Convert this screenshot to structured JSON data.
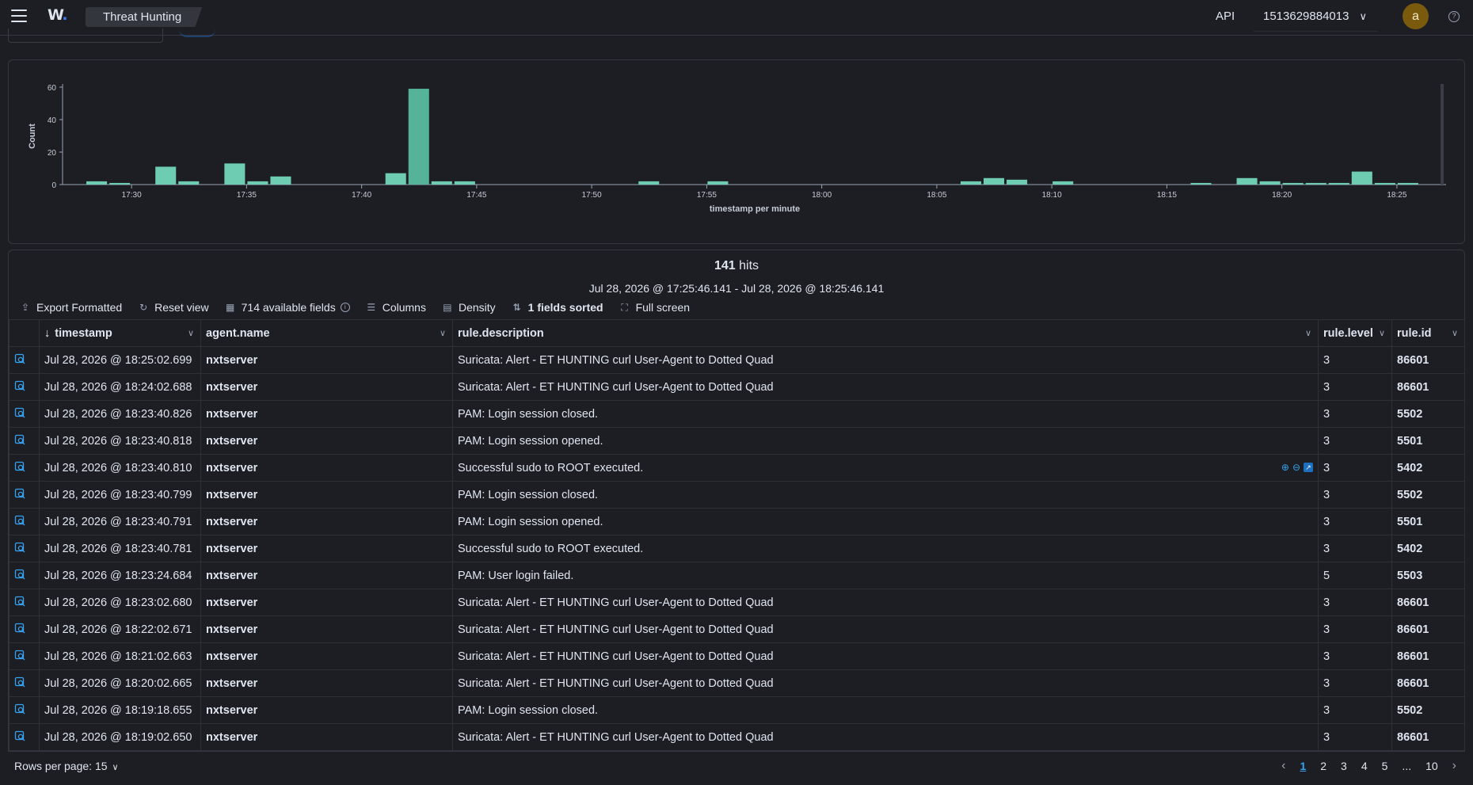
{
  "header": {
    "logo_text": "W",
    "breadcrumb": "Threat Hunting",
    "api_label": "API",
    "selected_id": "1513629884013",
    "avatar_initial": "a"
  },
  "chart_data": {
    "type": "bar",
    "ylabel": "Count",
    "xlabel": "timestamp per minute",
    "ylim": [
      0,
      60
    ],
    "yticks": [
      0,
      20,
      40,
      60
    ],
    "xticks": [
      "17:30",
      "17:35",
      "17:40",
      "17:45",
      "17:50",
      "17:55",
      "18:00",
      "18:05",
      "18:10",
      "18:15",
      "18:20",
      "18:25"
    ],
    "x_start_minute": "17:27",
    "bar_color": "#6dccb1",
    "highlight_color": "#54b399",
    "minute_counts": [
      [
        "17:28",
        2
      ],
      [
        "17:29",
        1
      ],
      [
        "17:31",
        11
      ],
      [
        "17:32",
        2
      ],
      [
        "17:34",
        13
      ],
      [
        "17:35",
        2
      ],
      [
        "17:36",
        5
      ],
      [
        "17:41",
        7
      ],
      [
        "17:42",
        59
      ],
      [
        "17:43",
        2
      ],
      [
        "17:44",
        2
      ],
      [
        "17:52",
        2
      ],
      [
        "17:55",
        2
      ],
      [
        "18:06",
        2
      ],
      [
        "18:07",
        4
      ],
      [
        "18:08",
        3
      ],
      [
        "18:10",
        2
      ],
      [
        "18:16",
        1
      ],
      [
        "18:18",
        4
      ],
      [
        "18:19",
        2
      ],
      [
        "18:20",
        1
      ],
      [
        "18:21",
        1
      ],
      [
        "18:22",
        1
      ],
      [
        "18:23",
        8
      ],
      [
        "18:24",
        1
      ],
      [
        "18:25",
        1
      ]
    ]
  },
  "results": {
    "hits_count": "141",
    "hits_word": "hits",
    "time_range": "Jul 28, 2026 @ 17:25:46.141 - Jul 28, 2026 @ 18:25:46.141"
  },
  "toolbar": {
    "export": "Export Formatted",
    "reset": "Reset view",
    "fields": "714 available fields",
    "columns": "Columns",
    "density": "Density",
    "sorted": "1 fields sorted",
    "fullscreen": "Full screen"
  },
  "columns": [
    "timestamp",
    "agent.name",
    "rule.description",
    "rule.level",
    "rule.id"
  ],
  "rows": [
    {
      "timestamp": "Jul 28, 2026 @ 18:25:02.699",
      "agent": "nxtserver",
      "description": "Suricata: Alert - ET HUNTING curl User-Agent to Dotted Quad",
      "level": "3",
      "id": "86601"
    },
    {
      "timestamp": "Jul 28, 2026 @ 18:24:02.688",
      "agent": "nxtserver",
      "description": "Suricata: Alert - ET HUNTING curl User-Agent to Dotted Quad",
      "level": "3",
      "id": "86601"
    },
    {
      "timestamp": "Jul 28, 2026 @ 18:23:40.826",
      "agent": "nxtserver",
      "description": "PAM: Login session closed.",
      "level": "3",
      "id": "5502"
    },
    {
      "timestamp": "Jul 28, 2026 @ 18:23:40.818",
      "agent": "nxtserver",
      "description": "PAM: Login session opened.",
      "level": "3",
      "id": "5501"
    },
    {
      "timestamp": "Jul 28, 2026 @ 18:23:40.810",
      "agent": "nxtserver",
      "description": "Successful sudo to ROOT executed.",
      "level": "3",
      "id": "5402"
    },
    {
      "timestamp": "Jul 28, 2026 @ 18:23:40.799",
      "agent": "nxtserver",
      "description": "PAM: Login session closed.",
      "level": "3",
      "id": "5502"
    },
    {
      "timestamp": "Jul 28, 2026 @ 18:23:40.791",
      "agent": "nxtserver",
      "description": "PAM: Login session opened.",
      "level": "3",
      "id": "5501"
    },
    {
      "timestamp": "Jul 28, 2026 @ 18:23:40.781",
      "agent": "nxtserver",
      "description": "Successful sudo to ROOT executed.",
      "level": "3",
      "id": "5402"
    },
    {
      "timestamp": "Jul 28, 2026 @ 18:23:24.684",
      "agent": "nxtserver",
      "description": "PAM: User login failed.",
      "level": "5",
      "id": "5503"
    },
    {
      "timestamp": "Jul 28, 2026 @ 18:23:02.680",
      "agent": "nxtserver",
      "description": "Suricata: Alert - ET HUNTING curl User-Agent to Dotted Quad",
      "level": "3",
      "id": "86601"
    },
    {
      "timestamp": "Jul 28, 2026 @ 18:22:02.671",
      "agent": "nxtserver",
      "description": "Suricata: Alert - ET HUNTING curl User-Agent to Dotted Quad",
      "level": "3",
      "id": "86601"
    },
    {
      "timestamp": "Jul 28, 2026 @ 18:21:02.663",
      "agent": "nxtserver",
      "description": "Suricata: Alert - ET HUNTING curl User-Agent to Dotted Quad",
      "level": "3",
      "id": "86601"
    },
    {
      "timestamp": "Jul 28, 2026 @ 18:20:02.665",
      "agent": "nxtserver",
      "description": "Suricata: Alert - ET HUNTING curl User-Agent to Dotted Quad",
      "level": "3",
      "id": "86601"
    },
    {
      "timestamp": "Jul 28, 2026 @ 18:19:18.655",
      "agent": "nxtserver",
      "description": "PAM: Login session closed.",
      "level": "3",
      "id": "5502"
    },
    {
      "timestamp": "Jul 28, 2026 @ 18:19:02.650",
      "agent": "nxtserver",
      "description": "Suricata: Alert - ET HUNTING curl User-Agent to Dotted Quad",
      "level": "3",
      "id": "86601"
    }
  ],
  "footer": {
    "rows_per_page": "Rows per page: 15",
    "pages": [
      "1",
      "2",
      "3",
      "4",
      "5",
      "...",
      "10"
    ],
    "current_page": "1"
  },
  "colors": {
    "background": "#1d1e24",
    "link": "#36a2ef",
    "bar": "#6dccb1",
    "border": "#343741"
  }
}
